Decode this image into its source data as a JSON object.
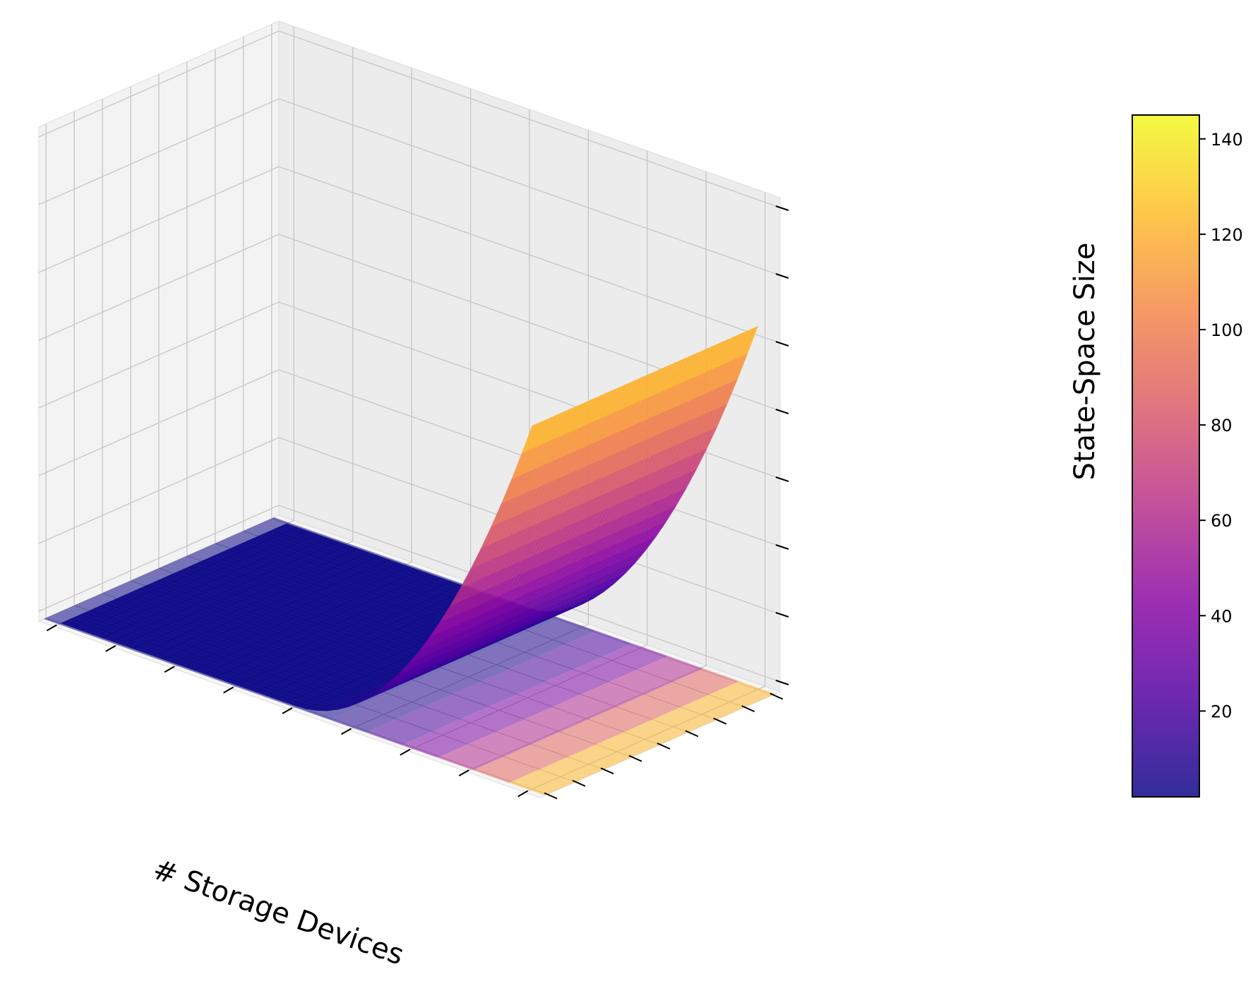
{
  "chart_data": {
    "type": "surface",
    "title": "",
    "xlabel": "# Storage Devices",
    "ylabel": "",
    "zlabel": "",
    "colormap": "plasma",
    "surface_function": "z = 2 + 140 * max(0, u - 0.5)^2 / 0.25",
    "x_tick_count": 9,
    "y_tick_count": 9,
    "z_tick_count": 8,
    "z_range": [
      2,
      145
    ],
    "floor_contour_filled": true,
    "grid": true,
    "colorbar": {
      "label": "State-Space Size",
      "ticks": [
        20,
        40,
        60,
        80,
        100,
        120,
        140
      ],
      "range": [
        2,
        145
      ],
      "colors": [
        "#0d0887",
        "#5302a3",
        "#8b0aa5",
        "#b83289",
        "#db5c68",
        "#f48849",
        "#febd2a",
        "#f0f921"
      ]
    }
  }
}
